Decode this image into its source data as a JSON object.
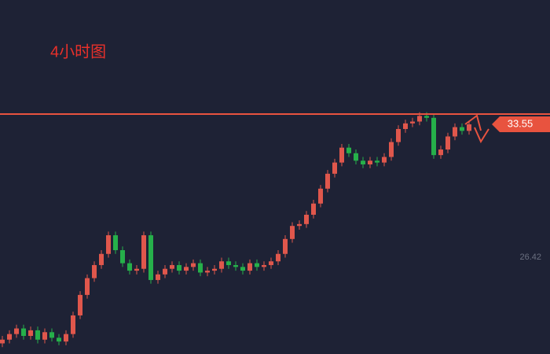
{
  "chart_data": {
    "type": "candlestick",
    "title": "4小时图",
    "open": [
      21.8,
      22.0,
      22.3,
      22.6,
      22.2,
      22.5,
      22.0,
      22.4,
      22.1,
      21.9,
      22.3,
      23.3,
      24.4,
      25.3,
      26.0,
      26.6,
      27.6,
      26.8,
      26.1,
      25.7,
      25.8,
      27.6,
      25.2,
      25.5,
      25.8,
      26.0,
      25.7,
      25.9,
      26.1,
      25.6,
      25.7,
      25.8,
      26.2,
      26.0,
      25.9,
      25.7,
      26.1,
      25.9,
      26.0,
      26.2,
      26.6,
      27.4,
      28.1,
      28.2,
      28.7,
      29.3,
      30.1,
      30.9,
      31.5,
      32.3,
      32.0,
      31.6,
      31.4,
      31.6,
      31.5,
      31.8,
      32.6,
      33.3,
      33.6,
      33.7,
      34.0,
      33.9,
      31.9,
      32.2,
      32.9,
      33.4,
      33.2
    ],
    "high": [
      22.2,
      22.5,
      22.8,
      22.8,
      22.7,
      22.7,
      22.6,
      22.6,
      22.3,
      22.5,
      23.5,
      24.6,
      25.5,
      26.2,
      26.8,
      27.8,
      27.8,
      27.0,
      26.3,
      26.0,
      27.8,
      27.8,
      25.7,
      26.0,
      26.2,
      26.2,
      26.1,
      26.3,
      26.3,
      25.9,
      26.0,
      26.4,
      26.4,
      26.2,
      26.1,
      26.3,
      26.3,
      26.2,
      26.4,
      26.8,
      27.6,
      28.3,
      28.4,
      28.9,
      29.5,
      30.3,
      31.1,
      31.7,
      32.5,
      32.5,
      32.2,
      31.8,
      31.8,
      31.8,
      32.0,
      32.8,
      33.5,
      33.8,
      33.9,
      34.2,
      34.2,
      34.1,
      32.4,
      33.1,
      33.6,
      33.6,
      33.75
    ],
    "low": [
      21.6,
      21.8,
      22.1,
      22.0,
      22.0,
      21.8,
      21.8,
      21.9,
      21.7,
      21.7,
      22.1,
      23.1,
      24.2,
      25.1,
      25.8,
      26.4,
      26.6,
      25.9,
      25.5,
      25.5,
      25.6,
      25.0,
      25.0,
      25.3,
      25.6,
      25.5,
      25.5,
      25.7,
      25.4,
      25.4,
      25.5,
      25.6,
      25.8,
      25.7,
      25.5,
      25.5,
      25.7,
      25.7,
      25.8,
      26.0,
      26.4,
      27.2,
      27.9,
      28.0,
      28.5,
      29.1,
      29.9,
      30.7,
      31.3,
      31.8,
      31.4,
      31.2,
      31.2,
      31.3,
      31.3,
      31.6,
      32.4,
      33.1,
      33.4,
      33.5,
      33.7,
      31.7,
      31.7,
      32.0,
      32.7,
      33.0,
      33.0
    ],
    "close": [
      22.0,
      22.3,
      22.6,
      22.2,
      22.5,
      22.0,
      22.4,
      22.1,
      21.9,
      22.3,
      23.3,
      24.4,
      25.3,
      26.0,
      26.6,
      27.6,
      26.8,
      26.1,
      25.7,
      25.8,
      27.6,
      25.2,
      25.5,
      25.8,
      26.0,
      25.7,
      25.9,
      26.1,
      25.6,
      25.7,
      25.8,
      26.2,
      26.0,
      25.9,
      25.7,
      26.1,
      25.9,
      26.0,
      26.2,
      26.6,
      27.4,
      28.1,
      28.2,
      28.7,
      29.3,
      30.1,
      30.9,
      31.5,
      32.3,
      32.0,
      31.6,
      31.4,
      31.6,
      31.5,
      31.8,
      32.6,
      33.3,
      33.6,
      33.7,
      34.0,
      33.9,
      31.9,
      32.2,
      32.9,
      33.4,
      33.2,
      33.55
    ],
    "up_color": "#e0574c",
    "down_color": "#26b04a",
    "ylim": [
      21.23,
      40.22
    ],
    "yticks": [
      26.42
    ],
    "last_price": 33.55,
    "level_line": 34.1,
    "level_color": "#e8533f"
  }
}
